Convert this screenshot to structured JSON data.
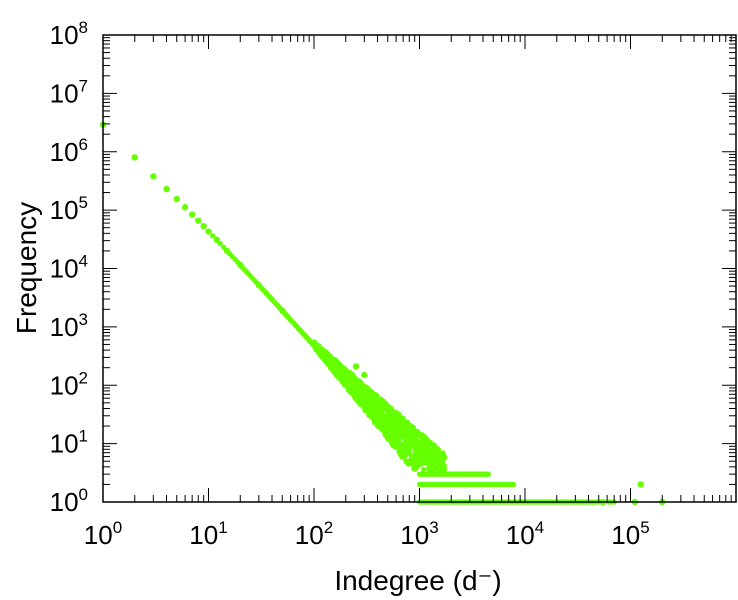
{
  "chart_data": {
    "type": "scatter",
    "title": "",
    "xlabel": "Indegree (d⁻)",
    "ylabel": "Frequency",
    "xscale": "log",
    "yscale": "log",
    "xlim": [
      1,
      1000000
    ],
    "ylim": [
      1,
      100000000
    ],
    "x_ticks": [
      {
        "base": "10",
        "exp": "0",
        "value": 1
      },
      {
        "base": "10",
        "exp": "1",
        "value": 10
      },
      {
        "base": "10",
        "exp": "2",
        "value": 100
      },
      {
        "base": "10",
        "exp": "3",
        "value": 1000
      },
      {
        "base": "10",
        "exp": "4",
        "value": 10000
      },
      {
        "base": "10",
        "exp": "5",
        "value": 100000
      }
    ],
    "y_ticks": [
      {
        "base": "10",
        "exp": "0",
        "value": 1
      },
      {
        "base": "10",
        "exp": "1",
        "value": 10
      },
      {
        "base": "10",
        "exp": "2",
        "value": 100
      },
      {
        "base": "10",
        "exp": "3",
        "value": 1000
      },
      {
        "base": "10",
        "exp": "4",
        "value": 10000
      },
      {
        "base": "10",
        "exp": "5",
        "value": 100000
      },
      {
        "base": "10",
        "exp": "6",
        "value": 1000000
      },
      {
        "base": "10",
        "exp": "7",
        "value": 10000000
      },
      {
        "base": "10",
        "exp": "8",
        "value": 100000000
      }
    ],
    "grid": false,
    "legend": "none",
    "marker_color": "#66ff00",
    "series": [
      {
        "power_law_head": [
          [
            1,
            2900000
          ],
          [
            2,
            800000
          ],
          [
            3,
            380000
          ],
          [
            4,
            230000
          ],
          [
            5,
            155000
          ],
          [
            6,
            112000
          ],
          [
            7,
            84000
          ],
          [
            8,
            66000
          ],
          [
            9,
            53000
          ],
          [
            10,
            43000
          ],
          [
            12,
            31000
          ],
          [
            15,
            20000
          ],
          [
            20,
            11500
          ],
          [
            30,
            5200
          ],
          [
            50,
            1900
          ],
          [
            100,
            480
          ],
          [
            200,
            120
          ],
          [
            250,
            210
          ],
          [
            300,
            150
          ]
        ],
        "tail_bands": [
          {
            "y": 3,
            "x_from": 1000,
            "x_to": 4500
          },
          {
            "y": 2,
            "x_from": 1000,
            "x_to": 7800
          },
          {
            "y": 1,
            "x_from": 1000,
            "x_to": 35000
          }
        ],
        "outliers": [
          [
            55000,
            1
          ],
          [
            110000,
            1
          ],
          [
            125000,
            2
          ],
          [
            200000,
            1
          ]
        ]
      }
    ]
  }
}
